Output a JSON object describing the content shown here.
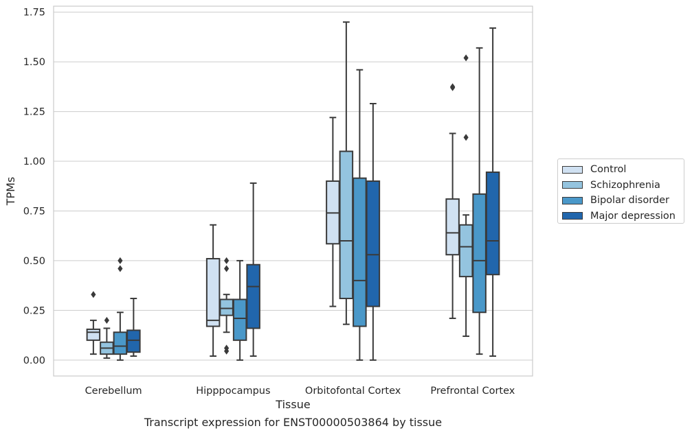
{
  "caption": "Transcript expression for ENST00000503864 by tissue",
  "chart_data": {
    "type": "box",
    "xlabel": "Tissue",
    "ylabel": "TPMs",
    "ylim": [
      -0.08,
      1.78
    ],
    "yticks": [
      0.0,
      0.25,
      0.5,
      0.75,
      1.0,
      1.25,
      1.5,
      1.75
    ],
    "ytick_labels": [
      "0.00",
      "0.25",
      "0.50",
      "0.75",
      "1.00",
      "1.25",
      "1.50",
      "1.75"
    ],
    "grid": "horizontal",
    "legend_position": "right",
    "categories": [
      "Cerebellum",
      "Hipppocampus",
      "Orbitofontal Cortex",
      "Prefrontal Cortex"
    ],
    "series": [
      {
        "name": "Control",
        "color": "#d0e1f2",
        "boxes": [
          {
            "whislo": 0.03,
            "q1": 0.1,
            "med": 0.14,
            "q3": 0.155,
            "whishi": 0.2,
            "fliers": [
              0.33
            ]
          },
          {
            "whislo": 0.02,
            "q1": 0.17,
            "med": 0.2,
            "q3": 0.51,
            "whishi": 0.68,
            "fliers": []
          },
          {
            "whislo": 0.27,
            "q1": 0.585,
            "med": 0.74,
            "q3": 0.9,
            "whishi": 1.22,
            "fliers": []
          },
          {
            "whislo": 0.21,
            "q1": 0.53,
            "med": 0.64,
            "q3": 0.81,
            "whishi": 1.14,
            "fliers": [
              1.37,
              1.375
            ]
          }
        ]
      },
      {
        "name": "Schizophrenia",
        "color": "#94c4df",
        "boxes": [
          {
            "whislo": 0.01,
            "q1": 0.03,
            "med": 0.06,
            "q3": 0.09,
            "whishi": 0.16,
            "fliers": [
              0.2
            ]
          },
          {
            "whislo": 0.14,
            "q1": 0.225,
            "med": 0.26,
            "q3": 0.305,
            "whishi": 0.33,
            "fliers": [
              0.5,
              0.46,
              0.06,
              0.045
            ]
          },
          {
            "whislo": 0.18,
            "q1": 0.31,
            "med": 0.6,
            "q3": 1.05,
            "whishi": 1.7,
            "fliers": []
          },
          {
            "whislo": 0.12,
            "q1": 0.42,
            "med": 0.57,
            "q3": 0.68,
            "whishi": 0.73,
            "fliers": [
              1.52,
              1.12
            ]
          }
        ]
      },
      {
        "name": "Bipolar disorder",
        "color": "#4a98c9",
        "boxes": [
          {
            "whislo": 0.0,
            "q1": 0.03,
            "med": 0.07,
            "q3": 0.14,
            "whishi": 0.24,
            "fliers": [
              0.5,
              0.46
            ]
          },
          {
            "whislo": 0.0,
            "q1": 0.1,
            "med": 0.21,
            "q3": 0.305,
            "whishi": 0.5,
            "fliers": []
          },
          {
            "whislo": 0.0,
            "q1": 0.17,
            "med": 0.4,
            "q3": 0.915,
            "whishi": 1.46,
            "fliers": []
          },
          {
            "whislo": 0.03,
            "q1": 0.24,
            "med": 0.5,
            "q3": 0.835,
            "whishi": 1.57,
            "fliers": []
          }
        ]
      },
      {
        "name": "Major depression",
        "color": "#2166ac",
        "boxes": [
          {
            "whislo": 0.02,
            "q1": 0.04,
            "med": 0.1,
            "q3": 0.15,
            "whishi": 0.31,
            "fliers": []
          },
          {
            "whislo": 0.02,
            "q1": 0.16,
            "med": 0.37,
            "q3": 0.48,
            "whishi": 0.89,
            "fliers": []
          },
          {
            "whislo": 0.0,
            "q1": 0.27,
            "med": 0.53,
            "q3": 0.9,
            "whishi": 1.29,
            "fliers": []
          },
          {
            "whislo": 0.02,
            "q1": 0.43,
            "med": 0.6,
            "q3": 0.945,
            "whishi": 1.67,
            "fliers": []
          }
        ]
      }
    ]
  }
}
